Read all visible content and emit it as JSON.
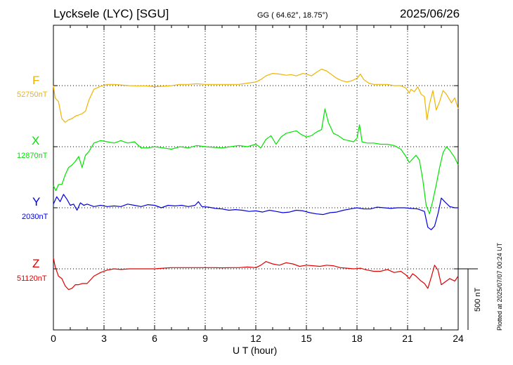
{
  "header": {
    "station": "Lycksele (LYC)  [SGU]",
    "coords": "GG ( 64.62°,  18.75°)",
    "date": "2025/06/26"
  },
  "footer": {
    "plotted": "Plotted at 2025/07/07 00:24 UT"
  },
  "chart_data": {
    "type": "line",
    "title": "Lycksele (LYC)  [SGU]",
    "xlabel": "U T (hour)",
    "xlim": [
      0,
      24
    ],
    "xticks": [
      0,
      3,
      6,
      9,
      12,
      15,
      18,
      21,
      24
    ],
    "scale_label": "500 nT",
    "scale_nT": 500,
    "series": [
      {
        "name": "F",
        "baseline_label": "52750nT",
        "baseline_nT": 52750,
        "color": "#f0b400",
        "points": [
          [
            0,
            52750
          ],
          [
            0.1,
            52650
          ],
          [
            0.3,
            52620
          ],
          [
            0.5,
            52480
          ],
          [
            0.7,
            52450
          ],
          [
            0.9,
            52470
          ],
          [
            1.1,
            52480
          ],
          [
            1.3,
            52500
          ],
          [
            1.5,
            52510
          ],
          [
            1.7,
            52520
          ],
          [
            1.9,
            52540
          ],
          [
            2.1,
            52630
          ],
          [
            2.4,
            52720
          ],
          [
            2.8,
            52745
          ],
          [
            3.2,
            52760
          ],
          [
            3.6,
            52760
          ],
          [
            4.0,
            52755
          ],
          [
            4.5,
            52750
          ],
          [
            5.0,
            52748
          ],
          [
            5.5,
            52748
          ],
          [
            6.0,
            52742
          ],
          [
            6.5,
            52745
          ],
          [
            7.0,
            52750
          ],
          [
            7.5,
            52760
          ],
          [
            8.0,
            52760
          ],
          [
            8.5,
            52765
          ],
          [
            9.0,
            52760
          ],
          [
            9.5,
            52760
          ],
          [
            10.0,
            52760
          ],
          [
            10.5,
            52760
          ],
          [
            11.0,
            52760
          ],
          [
            11.5,
            52770
          ],
          [
            12.0,
            52780
          ],
          [
            12.3,
            52800
          ],
          [
            12.6,
            52830
          ],
          [
            13.0,
            52850
          ],
          [
            13.4,
            52845
          ],
          [
            13.8,
            52835
          ],
          [
            14.1,
            52840
          ],
          [
            14.4,
            52830
          ],
          [
            14.8,
            52850
          ],
          [
            15.1,
            52840
          ],
          [
            15.3,
            52830
          ],
          [
            15.6,
            52860
          ],
          [
            15.9,
            52885
          ],
          [
            16.2,
            52870
          ],
          [
            16.5,
            52840
          ],
          [
            16.8,
            52810
          ],
          [
            17.1,
            52790
          ],
          [
            17.4,
            52780
          ],
          [
            17.7,
            52790
          ],
          [
            18.0,
            52810
          ],
          [
            18.2,
            52845
          ],
          [
            18.4,
            52800
          ],
          [
            18.7,
            52770
          ],
          [
            19.0,
            52760
          ],
          [
            19.4,
            52760
          ],
          [
            19.8,
            52760
          ],
          [
            20.2,
            52750
          ],
          [
            20.6,
            52750
          ],
          [
            20.9,
            52730
          ],
          [
            21.1,
            52690
          ],
          [
            21.2,
            52720
          ],
          [
            21.4,
            52700
          ],
          [
            21.6,
            52740
          ],
          [
            21.8,
            52680
          ],
          [
            22.0,
            52660
          ],
          [
            22.15,
            52470
          ],
          [
            22.3,
            52600
          ],
          [
            22.5,
            52710
          ],
          [
            22.7,
            52550
          ],
          [
            22.9,
            52620
          ],
          [
            23.1,
            52710
          ],
          [
            23.3,
            52680
          ],
          [
            23.6,
            52610
          ],
          [
            23.8,
            52650
          ],
          [
            24.0,
            52560
          ]
        ]
      },
      {
        "name": "X",
        "baseline_label": "12870nT",
        "baseline_nT": 12870,
        "color": "#00e400",
        "points": [
          [
            0,
            12550
          ],
          [
            0.15,
            12510
          ],
          [
            0.3,
            12560
          ],
          [
            0.5,
            12560
          ],
          [
            0.7,
            12640
          ],
          [
            0.9,
            12700
          ],
          [
            1.1,
            12720
          ],
          [
            1.3,
            12750
          ],
          [
            1.5,
            12790
          ],
          [
            1.7,
            12700
          ],
          [
            1.9,
            12800
          ],
          [
            2.1,
            12830
          ],
          [
            2.4,
            12900
          ],
          [
            2.8,
            12920
          ],
          [
            3.2,
            12910
          ],
          [
            3.6,
            12900
          ],
          [
            4.0,
            12920
          ],
          [
            4.4,
            12900
          ],
          [
            4.8,
            12910
          ],
          [
            5.2,
            12860
          ],
          [
            5.6,
            12860
          ],
          [
            6.0,
            12870
          ],
          [
            6.5,
            12860
          ],
          [
            7.0,
            12850
          ],
          [
            7.5,
            12870
          ],
          [
            8.0,
            12860
          ],
          [
            8.5,
            12880
          ],
          [
            9.0,
            12870
          ],
          [
            9.5,
            12865
          ],
          [
            10.0,
            12860
          ],
          [
            10.5,
            12870
          ],
          [
            11.0,
            12880
          ],
          [
            11.5,
            12870
          ],
          [
            12.0,
            12890
          ],
          [
            12.3,
            12860
          ],
          [
            12.6,
            12930
          ],
          [
            12.9,
            12960
          ],
          [
            13.2,
            12890
          ],
          [
            13.5,
            12950
          ],
          [
            13.8,
            12980
          ],
          [
            14.1,
            12990
          ],
          [
            14.4,
            13000
          ],
          [
            14.7,
            12970
          ],
          [
            15.0,
            12950
          ],
          [
            15.3,
            12960
          ],
          [
            15.6,
            12990
          ],
          [
            15.9,
            13010
          ],
          [
            16.1,
            13180
          ],
          [
            16.3,
            13070
          ],
          [
            16.6,
            12980
          ],
          [
            16.9,
            12960
          ],
          [
            17.2,
            12930
          ],
          [
            17.5,
            12920
          ],
          [
            17.8,
            12910
          ],
          [
            18.0,
            12940
          ],
          [
            18.15,
            13050
          ],
          [
            18.3,
            12910
          ],
          [
            18.6,
            12900
          ],
          [
            19.0,
            12900
          ],
          [
            19.4,
            12890
          ],
          [
            19.8,
            12890
          ],
          [
            20.2,
            12880
          ],
          [
            20.6,
            12850
          ],
          [
            20.9,
            12790
          ],
          [
            21.1,
            12740
          ],
          [
            21.3,
            12770
          ],
          [
            21.5,
            12800
          ],
          [
            21.7,
            12760
          ],
          [
            21.9,
            12600
          ],
          [
            22.1,
            12390
          ],
          [
            22.3,
            12320
          ],
          [
            22.5,
            12430
          ],
          [
            22.7,
            12560
          ],
          [
            22.9,
            12700
          ],
          [
            23.1,
            12820
          ],
          [
            23.3,
            12870
          ],
          [
            23.5,
            12840
          ],
          [
            23.8,
            12780
          ],
          [
            24.0,
            12720
          ]
        ]
      },
      {
        "name": "Y",
        "baseline_label": "2030nT",
        "baseline_nT": 2030,
        "color": "#0000e0",
        "points": [
          [
            0,
            2060
          ],
          [
            0.2,
            2120
          ],
          [
            0.4,
            2080
          ],
          [
            0.6,
            2140
          ],
          [
            0.8,
            2100
          ],
          [
            1.0,
            2050
          ],
          [
            1.2,
            2060
          ],
          [
            1.4,
            2010
          ],
          [
            1.6,
            2070
          ],
          [
            1.8,
            2050
          ],
          [
            2.0,
            2060
          ],
          [
            2.4,
            2040
          ],
          [
            2.8,
            2050
          ],
          [
            3.2,
            2040
          ],
          [
            3.6,
            2045
          ],
          [
            4.0,
            2040
          ],
          [
            4.4,
            2060
          ],
          [
            4.8,
            2050
          ],
          [
            5.2,
            2040
          ],
          [
            5.6,
            2055
          ],
          [
            6.0,
            2050
          ],
          [
            6.4,
            2030
          ],
          [
            6.8,
            2050
          ],
          [
            7.2,
            2045
          ],
          [
            7.6,
            2050
          ],
          [
            8.0,
            2040
          ],
          [
            8.4,
            2050
          ],
          [
            8.6,
            2080
          ],
          [
            8.8,
            2040
          ],
          [
            9.2,
            2035
          ],
          [
            9.6,
            2025
          ],
          [
            10.0,
            2020
          ],
          [
            10.4,
            2010
          ],
          [
            10.8,
            2015
          ],
          [
            11.2,
            2010
          ],
          [
            11.6,
            2000
          ],
          [
            12.0,
            2005
          ],
          [
            12.4,
            1995
          ],
          [
            12.8,
            2010
          ],
          [
            13.2,
            2000
          ],
          [
            13.6,
            1990
          ],
          [
            14.0,
            1995
          ],
          [
            14.4,
            2010
          ],
          [
            14.8,
            2005
          ],
          [
            15.2,
            1990
          ],
          [
            15.6,
            1980
          ],
          [
            16.0,
            1975
          ],
          [
            16.4,
            1990
          ],
          [
            16.8,
            1995
          ],
          [
            17.2,
            2010
          ],
          [
            17.6,
            2020
          ],
          [
            18.0,
            2030
          ],
          [
            18.4,
            2020
          ],
          [
            18.8,
            2020
          ],
          [
            19.2,
            2035
          ],
          [
            19.6,
            2030
          ],
          [
            20.0,
            2025
          ],
          [
            20.4,
            2030
          ],
          [
            20.8,
            2030
          ],
          [
            21.2,
            2025
          ],
          [
            21.6,
            2020
          ],
          [
            22.0,
            2000
          ],
          [
            22.2,
            1870
          ],
          [
            22.4,
            1850
          ],
          [
            22.6,
            1880
          ],
          [
            22.8,
            1980
          ],
          [
            23.0,
            2110
          ],
          [
            23.2,
            2080
          ],
          [
            23.5,
            2040
          ],
          [
            23.8,
            2030
          ],
          [
            24.0,
            2030
          ]
        ]
      },
      {
        "name": "Z",
        "baseline_label": "51120nT",
        "baseline_nT": 51120,
        "color": "#e00000",
        "points": [
          [
            0,
            51210
          ],
          [
            0.1,
            51140
          ],
          [
            0.3,
            51060
          ],
          [
            0.5,
            51040
          ],
          [
            0.7,
            50980
          ],
          [
            0.9,
            50950
          ],
          [
            1.1,
            50960
          ],
          [
            1.3,
            50990
          ],
          [
            1.5,
            50990
          ],
          [
            1.7,
            51000
          ],
          [
            2.0,
            51000
          ],
          [
            2.4,
            51060
          ],
          [
            2.8,
            51090
          ],
          [
            3.2,
            51110
          ],
          [
            3.6,
            51120
          ],
          [
            4.0,
            51115
          ],
          [
            4.5,
            51120
          ],
          [
            5.0,
            51120
          ],
          [
            5.5,
            51120
          ],
          [
            6.0,
            51120
          ],
          [
            6.5,
            51125
          ],
          [
            7.0,
            51130
          ],
          [
            7.5,
            51130
          ],
          [
            8.0,
            51130
          ],
          [
            8.5,
            51130
          ],
          [
            9.0,
            51130
          ],
          [
            9.5,
            51130
          ],
          [
            10.0,
            51128
          ],
          [
            10.5,
            51130
          ],
          [
            11.0,
            51130
          ],
          [
            11.5,
            51135
          ],
          [
            12.0,
            51130
          ],
          [
            12.3,
            51150
          ],
          [
            12.6,
            51180
          ],
          [
            13.0,
            51160
          ],
          [
            13.4,
            51150
          ],
          [
            13.8,
            51170
          ],
          [
            14.2,
            51160
          ],
          [
            14.6,
            51140
          ],
          [
            15.0,
            51150
          ],
          [
            15.4,
            51145
          ],
          [
            15.8,
            51140
          ],
          [
            16.2,
            51150
          ],
          [
            16.6,
            51145
          ],
          [
            17.0,
            51130
          ],
          [
            17.4,
            51125
          ],
          [
            17.8,
            51120
          ],
          [
            18.2,
            51125
          ],
          [
            18.6,
            51110
          ],
          [
            19.0,
            51100
          ],
          [
            19.4,
            51100
          ],
          [
            19.8,
            51115
          ],
          [
            20.2,
            51090
          ],
          [
            20.6,
            51100
          ],
          [
            20.9,
            51070
          ],
          [
            21.1,
            51040
          ],
          [
            21.3,
            51080
          ],
          [
            21.5,
            51060
          ],
          [
            21.8,
            51020
          ],
          [
            22.0,
            51000
          ],
          [
            22.2,
            50960
          ],
          [
            22.4,
            51050
          ],
          [
            22.6,
            51150
          ],
          [
            22.8,
            51110
          ],
          [
            23.0,
            50990
          ],
          [
            23.2,
            51010
          ],
          [
            23.5,
            51040
          ],
          [
            23.8,
            51020
          ],
          [
            24.0,
            51060
          ]
        ]
      }
    ]
  }
}
